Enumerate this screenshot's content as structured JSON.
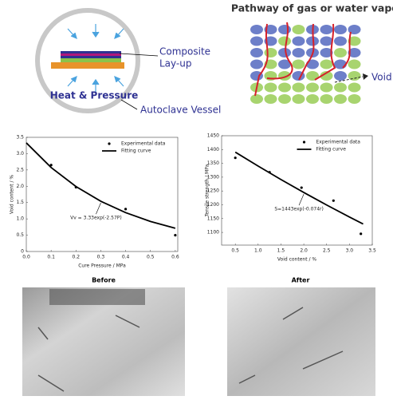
{
  "diagram_left": {
    "label_1": "Composite",
    "label_2": "Lay-up",
    "heat": "Heat & Pressure",
    "vessel": "Autoclave Vessel"
  },
  "diagram_right": {
    "title": "Pathway of gas or water vapor",
    "void": "Void"
  },
  "chart_data": [
    {
      "type": "scatter",
      "x_label": "Cure Pressure / MPa",
      "y_label": "Void content / %",
      "xlim": [
        0,
        0.61
      ],
      "xticks": [
        {
          "value": 0,
          "label": "0.0"
        },
        0.1,
        0.2,
        0.3,
        0.4,
        0.5,
        0.6
      ],
      "ylim": [
        0,
        3.5
      ],
      "yticks": [
        0,
        0.5,
        {
          "value": 1,
          "label": "1.0"
        },
        1.5,
        {
          "value": 2,
          "label": "2.0"
        },
        2.5,
        {
          "value": 3,
          "label": "3.0"
        },
        3.5
      ],
      "legend": "upper right",
      "annotation": "Vv = 3.33exp(-2.57P)",
      "series": [
        {
          "name": "Experimental data",
          "mode": "markers",
          "color": "#000000",
          "x": [
            0.1,
            0.2,
            0.4,
            0.6
          ],
          "values": [
            2.65,
            1.97,
            1.3,
            0.5
          ]
        },
        {
          "name": "Fitting curve",
          "mode": "line",
          "color": "#000000",
          "x": [
            0,
            0.1,
            0.2,
            0.3,
            0.4,
            0.5,
            0.6
          ],
          "values": [
            3.33,
            2.575,
            1.992,
            1.54,
            1.191,
            0.921,
            0.713
          ]
        }
      ]
    },
    {
      "type": "scatter",
      "x_label": "Void content / %",
      "y_label": "Tensile strength / MPa",
      "xlim": [
        0.2,
        3.5
      ],
      "xticks": [
        0.5,
        {
          "value": 1,
          "label": "1.0"
        },
        1.5,
        {
          "value": 2,
          "label": "2.0"
        },
        2.5,
        {
          "value": 3,
          "label": "3.0"
        },
        3.5
      ],
      "ylim": [
        1054,
        1450
      ],
      "yticks": [
        1100,
        1150,
        1200,
        1250,
        1300,
        1350,
        1400,
        1450
      ],
      "legend": "upper right",
      "annotation": "S=1443exp(-0.074r)",
      "series": [
        {
          "name": "Experimental data",
          "mode": "markers",
          "color": "#000000",
          "x": [
            0.5,
            1.25,
            1.95,
            2.65,
            3.25
          ],
          "values": [
            1370,
            1318,
            1262,
            1215,
            1095
          ]
        },
        {
          "name": "Fitting curve",
          "mode": "line",
          "color": "#000000",
          "x": [
            0.5,
            1,
            1.5,
            2,
            2.5,
            3,
            3.3
          ],
          "values": [
            1390.6,
            1340.1,
            1291.3,
            1244.5,
            1199.3,
            1155.7,
            1130.3
          ]
        }
      ]
    }
  ],
  "photos": {
    "before": "Before",
    "after": "After"
  }
}
